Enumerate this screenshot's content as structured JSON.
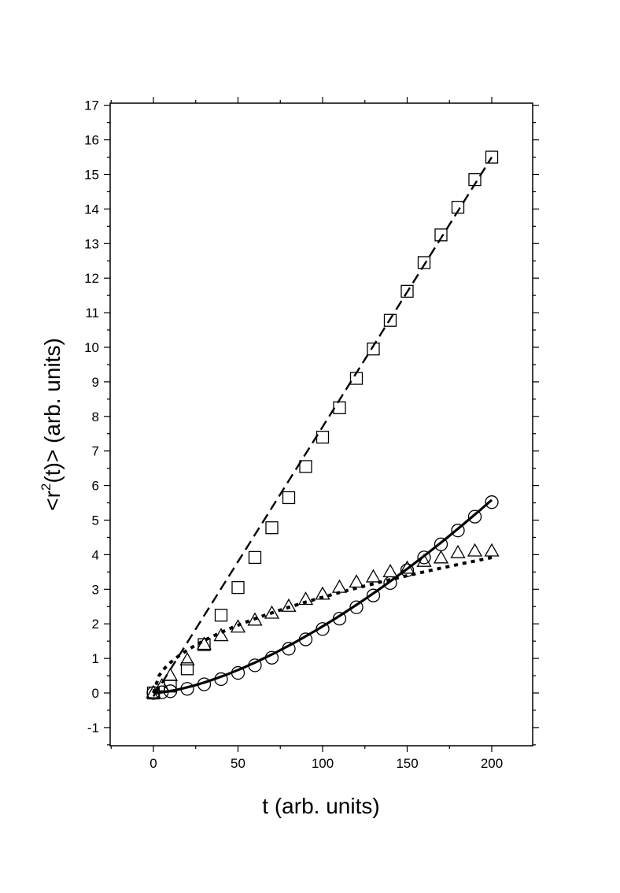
{
  "chart_data": {
    "type": "scatter",
    "xlabel": "t (arb. units)",
    "ylabel_parts": {
      "pre": "<r",
      "sup": "2",
      "post": "(t)> (arb. units)"
    },
    "xlim": [
      -25,
      225
    ],
    "ylim": [
      -1.5,
      17
    ],
    "x_ticks": [
      0,
      50,
      100,
      150,
      200
    ],
    "y_ticks": [
      -1,
      0,
      1,
      2,
      3,
      4,
      5,
      6,
      7,
      8,
      9,
      10,
      11,
      12,
      13,
      14,
      15,
      16,
      17
    ],
    "grid": false,
    "series": [
      {
        "marker": "square",
        "x": [
          0,
          10,
          20,
          30,
          40,
          50,
          60,
          70,
          80,
          90,
          100,
          110,
          120,
          130,
          140,
          150,
          160,
          170,
          180,
          190,
          200
        ],
        "y": [
          0,
          0.2,
          0.7,
          1.4,
          2.25,
          3.05,
          3.92,
          4.78,
          5.65,
          6.55,
          7.4,
          8.25,
          9.1,
          9.95,
          10.78,
          11.62,
          12.45,
          13.25,
          14.05,
          14.85,
          15.5
        ]
      },
      {
        "marker": "triangle",
        "x": [
          0,
          5,
          10,
          20,
          30,
          40,
          50,
          60,
          70,
          80,
          90,
          100,
          110,
          120,
          130,
          140,
          150,
          160,
          170,
          180,
          190,
          200
        ],
        "y": [
          0,
          0.2,
          0.5,
          0.95,
          1.4,
          1.65,
          1.9,
          2.1,
          2.3,
          2.5,
          2.7,
          2.85,
          3.05,
          3.2,
          3.35,
          3.5,
          3.6,
          3.8,
          3.9,
          4.05,
          4.1,
          4.1
        ]
      },
      {
        "marker": "circle",
        "x": [
          0,
          5,
          10,
          20,
          30,
          40,
          50,
          60,
          70,
          80,
          90,
          100,
          110,
          120,
          130,
          140,
          150,
          160,
          170,
          180,
          190,
          200
        ],
        "y": [
          0,
          0.02,
          0.05,
          0.12,
          0.25,
          0.4,
          0.58,
          0.8,
          1.02,
          1.28,
          1.55,
          1.85,
          2.15,
          2.48,
          2.82,
          3.18,
          3.55,
          3.92,
          4.3,
          4.7,
          5.1,
          5.52
        ]
      }
    ],
    "fits": [
      {
        "style": "dashed",
        "x": [
          0,
          200
        ],
        "y": [
          -0.1,
          15.5
        ]
      },
      {
        "style": "dotted",
        "shape": "sqrt",
        "x_from": 0,
        "x_to": 200,
        "coef": 0.277
      },
      {
        "style": "solid",
        "shape": "power",
        "x_from": 0,
        "x_to": 200,
        "coef": 0.00164,
        "exp": 1.535
      }
    ]
  }
}
